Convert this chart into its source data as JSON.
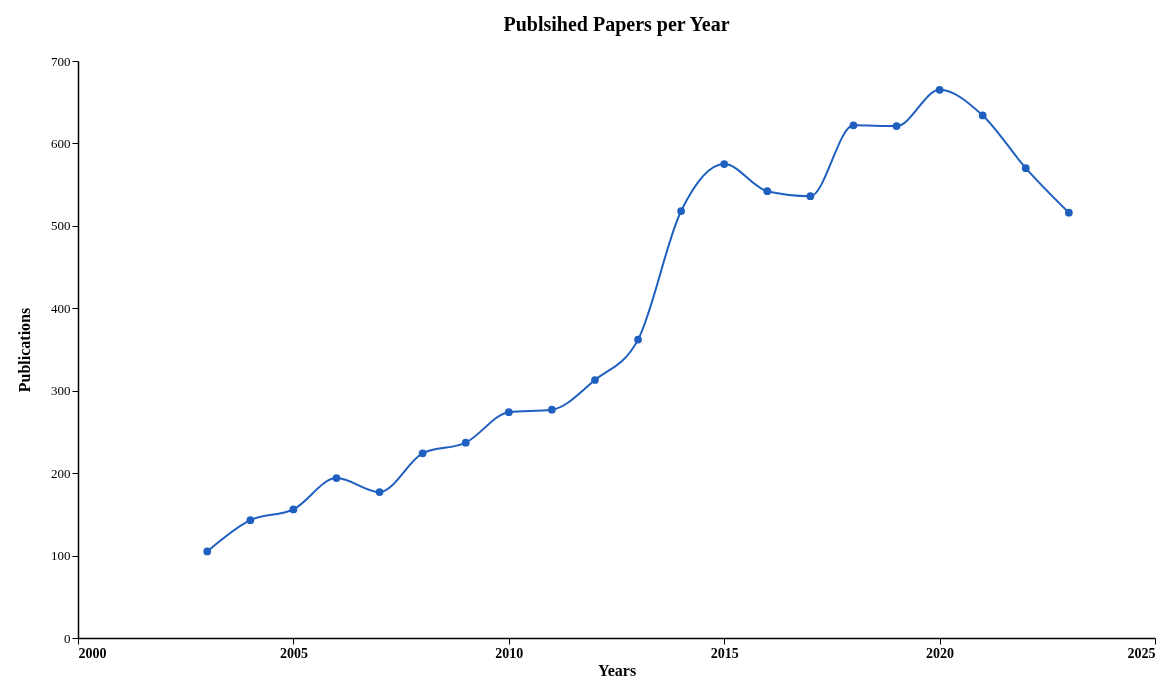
{
  "chart_data": {
    "type": "line",
    "title": "Publsihed Papers per Year",
    "xlabel": "Years",
    "ylabel": "Publications",
    "x": [
      2003,
      2004,
      2005,
      2006,
      2007,
      2008,
      2009,
      2010,
      2011,
      2012,
      2013,
      2014,
      2015,
      2016,
      2017,
      2018,
      2019,
      2020,
      2021,
      2022,
      2023
    ],
    "series": [
      {
        "color": "#1f5fbf",
        "values": [
          105,
          143,
          156,
          194,
          177,
          224,
          237,
          274,
          277,
          313,
          362,
          518,
          575,
          542,
          536,
          622,
          621,
          665,
          634,
          570,
          516
        ]
      }
    ],
    "xlim": [
      2000,
      2025
    ],
    "xticks": [
      2000,
      2005,
      2010,
      2015,
      2020,
      2025
    ],
    "ylim": [
      0,
      700
    ],
    "yticks": [
      0,
      100,
      200,
      300,
      400,
      500,
      600,
      700
    ],
    "grid": false,
    "marker": "circle",
    "line_style": "solid"
  }
}
